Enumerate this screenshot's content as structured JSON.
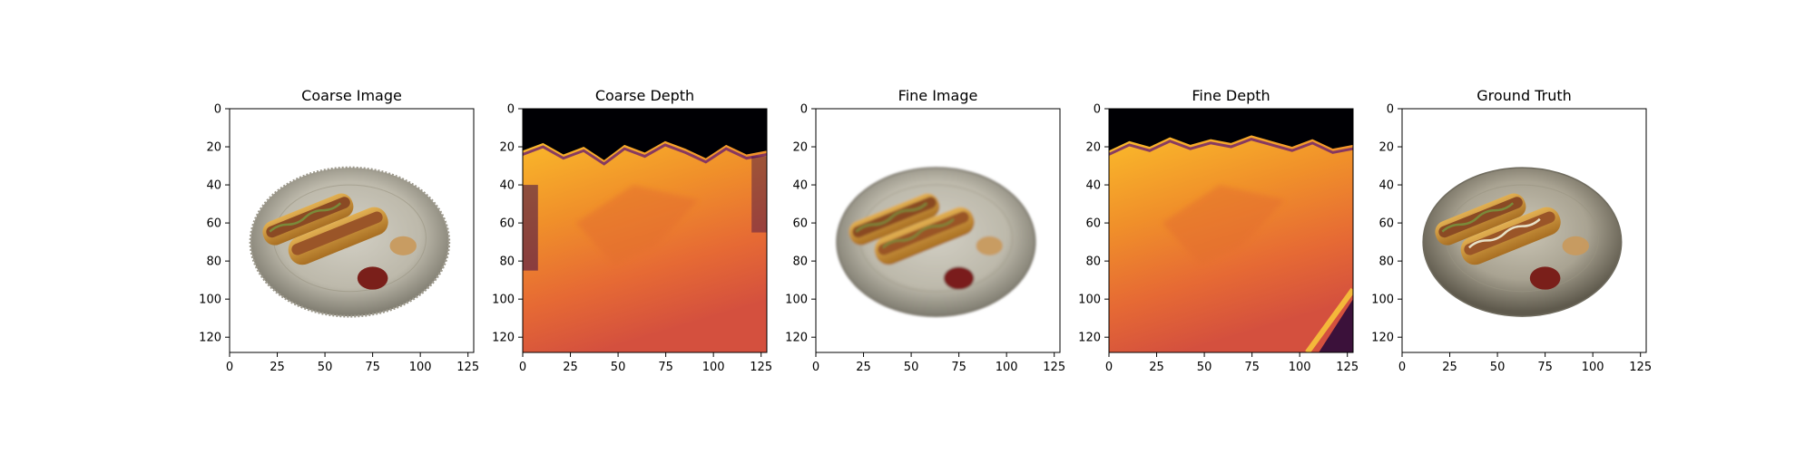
{
  "figure": {
    "panels": [
      {
        "title": "Coarse Image",
        "kind": "image-coarse"
      },
      {
        "title": "Coarse Depth",
        "kind": "depth-coarse"
      },
      {
        "title": "Fine Image",
        "kind": "image-fine"
      },
      {
        "title": "Fine Depth",
        "kind": "depth-fine"
      },
      {
        "title": "Ground Truth",
        "kind": "image-gt"
      }
    ],
    "axes": {
      "x_ticks": [
        0,
        25,
        50,
        75,
        100,
        125
      ],
      "y_ticks": [
        0,
        20,
        40,
        60,
        80,
        100,
        120
      ],
      "extent": [
        0,
        128
      ]
    },
    "colors": {
      "plate_rim": "#8d8b80",
      "plate_center": "#c9c5b8",
      "bun": "#c8902e",
      "sausage": "#8a4a24",
      "relish": "#7a8a3a",
      "ketchup": "#7a1f1a",
      "mustard": "#c89a5e",
      "depth_far": "#000004",
      "depth_mid": "#f0902a",
      "depth_near": "#d9523e",
      "depth_bright": "#fcd23a"
    }
  }
}
